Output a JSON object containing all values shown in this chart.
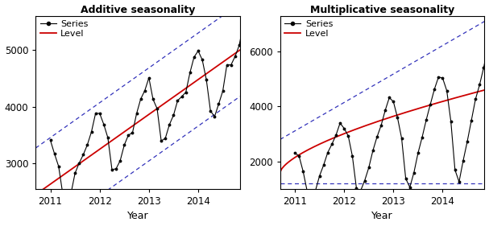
{
  "title_add": "Additive seasonality",
  "title_mult": "Multiplicative seasonality",
  "xlabel": "Year",
  "legend_series": "Series",
  "legend_level": "Level",
  "add_ylim": [
    2550,
    5600
  ],
  "add_yticks": [
    3000,
    4000,
    5000
  ],
  "mult_ylim": [
    1000,
    7300
  ],
  "mult_yticks": [
    2000,
    4000,
    6000
  ],
  "xlim": [
    2010.7,
    2014.85
  ],
  "xticks": [
    2011,
    2012,
    2013,
    2014
  ],
  "background": "#ffffff",
  "series_color": "#000000",
  "level_color": "#cc0000",
  "band_color": "#3333bb"
}
